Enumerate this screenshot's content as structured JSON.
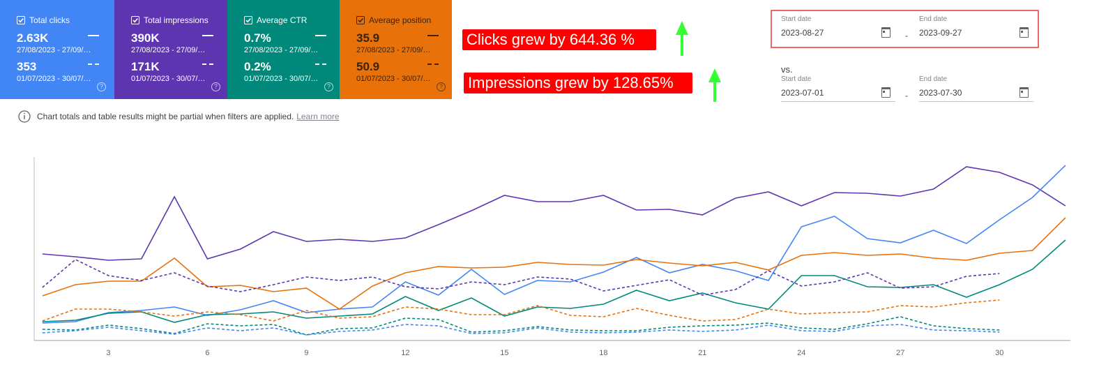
{
  "metrics": [
    {
      "label": "Total clicks",
      "value": "2.63K",
      "range": "27/08/2023 - 27/09/…",
      "compare_value": "353",
      "compare_range": "01/07/2023 - 30/07/…",
      "color": "#4285f4",
      "text_color": "#ffffff"
    },
    {
      "label": "Total impressions",
      "value": "390K",
      "range": "27/08/2023 - 27/09/…",
      "compare_value": "171K",
      "compare_range": "01/07/2023 - 30/07/…",
      "color": "#5e35b1",
      "text_color": "#ffffff"
    },
    {
      "label": "Average CTR",
      "value": "0.7%",
      "range": "27/08/2023 - 27/09/…",
      "compare_value": "0.2%",
      "compare_range": "01/07/2023 - 30/07/…",
      "color": "#00897b",
      "text_color": "#ffffff"
    },
    {
      "label": "Average position",
      "value": "35.9",
      "range": "27/08/2023 - 27/09/…",
      "compare_value": "50.9",
      "compare_range": "01/07/2023 - 30/07/…",
      "color": "#e8710a",
      "text_color": "#3a2408"
    }
  ],
  "annotations": [
    "Clicks grew by 644.36 %",
    "Impressions grew by 128.65%"
  ],
  "date_range": {
    "start_label": "Start date",
    "end_label": "End date",
    "separator": "-",
    "start": "2023-08-27",
    "end": "2023-09-27",
    "vs": "vs.",
    "compare_start": "2023-07-01",
    "compare_end": "2023-07-30"
  },
  "notice": {
    "text": "Chart totals and table results might be partial when filters are applied.",
    "link": "Learn more"
  },
  "chart_data": {
    "type": "line",
    "x": [
      1,
      2,
      3,
      4,
      5,
      6,
      7,
      8,
      9,
      10,
      11,
      12,
      13,
      14,
      15,
      16,
      17,
      18,
      19,
      20,
      21,
      22,
      23,
      24,
      25,
      26,
      27,
      28,
      29,
      30,
      31,
      32
    ],
    "xlim": [
      0.75,
      32.15
    ],
    "xticks": [
      3,
      6,
      9,
      12,
      15,
      18,
      21,
      24,
      27,
      30
    ],
    "ylim": [
      0,
      263
    ],
    "series": [
      {
        "color": "#5e35b1",
        "dash": false,
        "values": [
          124,
          120,
          115,
          117,
          206,
          117,
          131,
          156,
          142,
          145,
          142,
          147,
          166,
          186,
          208,
          199,
          199,
          208,
          187,
          188,
          180,
          204,
          213,
          193,
          212,
          211,
          207,
          217,
          249,
          241,
          223,
          193
        ]
      },
      {
        "color": "#4285f4",
        "dash": false,
        "values": [
          25,
          27,
          40,
          43,
          48,
          36,
          44,
          57,
          40,
          45,
          48,
          84,
          65,
          102,
          66,
          86,
          84,
          98,
          119,
          97,
          109,
          100,
          86,
          163,
          178,
          146,
          140,
          158,
          139,
          173,
          205,
          251
        ]
      },
      {
        "color": "#e8710a",
        "dash": false,
        "values": [
          64,
          80,
          85,
          85,
          118,
          77,
          79,
          70,
          75,
          45,
          78,
          97,
          106,
          104,
          105,
          112,
          109,
          108,
          116,
          111,
          107,
          112,
          101,
          122,
          126,
          122,
          124,
          118,
          115,
          125,
          129,
          176
        ]
      },
      {
        "color": "#00897b",
        "dash": false,
        "values": [
          27,
          29,
          39,
          41,
          26,
          37,
          38,
          41,
          32,
          35,
          38,
          63,
          43,
          61,
          35,
          48,
          46,
          52,
          72,
          57,
          68,
          54,
          45,
          93,
          93,
          77,
          76,
          80,
          62,
          80,
          102,
          144
        ]
      },
      {
        "color": "#5e35b1",
        "dash": true,
        "values": [
          76,
          116,
          93,
          86,
          97,
          78,
          70,
          80,
          91,
          86,
          91,
          77,
          74,
          84,
          80,
          91,
          88,
          71,
          79,
          87,
          65,
          73,
          100,
          78,
          84,
          97,
          75,
          77,
          92,
          96,
          null,
          null
        ]
      },
      {
        "color": "#e8710a",
        "dash": true,
        "values": [
          28,
          45,
          45,
          41,
          35,
          41,
          37,
          28,
          43,
          32,
          34,
          48,
          45,
          37,
          37,
          50,
          36,
          34,
          46,
          36,
          28,
          30,
          45,
          38,
          40,
          41,
          50,
          48,
          54,
          58,
          null,
          null
        ]
      },
      {
        "color": "#00897b",
        "dash": true,
        "values": [
          16,
          15,
          22,
          17,
          10,
          24,
          21,
          23,
          8,
          17,
          18,
          32,
          30,
          12,
          14,
          20,
          15,
          14,
          14,
          19,
          21,
          22,
          25,
          18,
          16,
          24,
          34,
          21,
          17,
          15,
          null,
          null
        ]
      },
      {
        "color": "#4285f4",
        "dash": true,
        "values": [
          11,
          14,
          19,
          14,
          9,
          18,
          14,
          18,
          8,
          13,
          15,
          23,
          21,
          10,
          11,
          18,
          12,
          11,
          12,
          15,
          13,
          15,
          22,
          14,
          13,
          21,
          23,
          15,
          14,
          12,
          null,
          null
        ]
      }
    ]
  }
}
